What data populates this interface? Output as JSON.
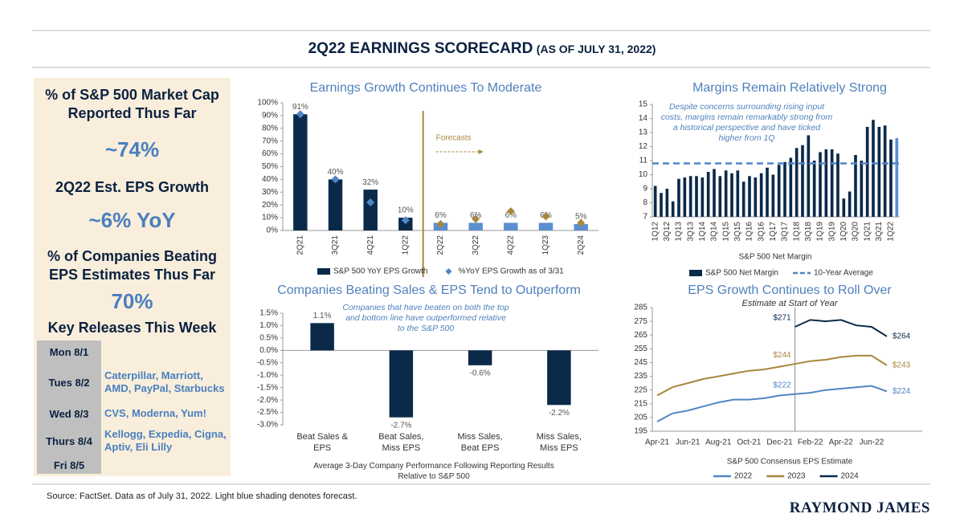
{
  "header": {
    "title": "2Q22 EARNINGS SCORECARD",
    "subtitle": "(AS OF JULY 31, 2022)"
  },
  "panel": {
    "stats": [
      {
        "label": "% of S&P 500 Market Cap Reported Thus Far",
        "value": "~74%"
      },
      {
        "label": "2Q22 Est. EPS Growth",
        "value": "~6% YoY"
      },
      {
        "label": "% of Companies Beating EPS Estimates Thus Far",
        "value": "70%"
      }
    ],
    "releases_title": "Key Releases This Week",
    "releases": [
      {
        "day": "Mon 8/1"
      },
      {
        "day": "Tues 8/2",
        "companies": "Caterpillar, Marriott, AMD, PayPal, Starbucks"
      },
      {
        "day": "Wed 8/3",
        "companies": "CVS, Moderna, Yum!"
      },
      {
        "day": "Thurs 8/4",
        "companies": "Kellogg, Expedia, Cigna, Aptiv, Eli Lilly"
      },
      {
        "day": "Fri 8/5"
      }
    ]
  },
  "chart_data": [
    {
      "type": "bar",
      "title": "Earnings Growth Continues To Moderate",
      "categories": [
        "2Q21",
        "3Q21",
        "4Q21",
        "1Q22",
        "2Q22",
        "3Q22",
        "4Q22",
        "1Q23",
        "2Q24"
      ],
      "series": [
        {
          "name": "S&P 500 YoY EPS Growth",
          "type": "bar",
          "colors": [
            "#0b2a4a",
            "#0b2a4a",
            "#0b2a4a",
            "#0b2a4a",
            "#5b8fcf",
            "#5b8fcf",
            "#5b8fcf",
            "#5b8fcf",
            "#5b8fcf"
          ],
          "values": [
            91,
            40,
            32,
            10,
            6,
            6,
            6,
            6,
            5
          ],
          "value_labels": [
            "91%",
            "40%",
            "32%",
            "10%",
            "6%",
            "6%",
            "6%",
            "6%",
            "5%"
          ]
        },
        {
          "name": "%YoY EPS Growth as of 3/31",
          "type": "scatter",
          "colors": [
            "#4f86c6",
            "#4f86c6",
            "#4f86c6",
            "#4f86c6",
            "#a8873c",
            "#a8873c",
            "#a8873c",
            "#a8873c",
            "#a8873c"
          ],
          "values": [
            91,
            40,
            22,
            8,
            5,
            9,
            15,
            11,
            6
          ]
        }
      ],
      "annotations": [
        "Forecasts"
      ],
      "ylim": [
        0,
        100
      ],
      "yticks": [
        {
          "value": 0,
          "label": "0%"
        },
        {
          "value": 10,
          "label": "10%"
        },
        {
          "value": 20,
          "label": "20%"
        },
        {
          "value": 30,
          "label": "30%"
        },
        {
          "value": 40,
          "label": "40%"
        },
        {
          "value": 50,
          "label": "50%"
        },
        {
          "value": 60,
          "label": "60%"
        },
        {
          "value": 70,
          "label": "70%"
        },
        {
          "value": 80,
          "label": "80%"
        },
        {
          "value": 90,
          "label": "90%"
        },
        {
          "value": 100,
          "label": "100%"
        }
      ],
      "grid": false
    },
    {
      "type": "bar",
      "title": "Margins Remain Relatively Strong",
      "categories": [
        "1Q12",
        null,
        "3Q12",
        null,
        "1Q13",
        null,
        "3Q13",
        null,
        "1Q14",
        null,
        "3Q14",
        null,
        "1Q15",
        null,
        "3Q15",
        null,
        "1Q16",
        null,
        "3Q16",
        null,
        "1Q17",
        null,
        "3Q17",
        null,
        "1Q18",
        null,
        "3Q18",
        null,
        "1Q19",
        null,
        "3Q19",
        null,
        "1Q20",
        null,
        "3Q20",
        null,
        "1Q21",
        null,
        "3Q21",
        null,
        "1Q22",
        null
      ],
      "series": [
        {
          "name": "S&P 500 Net Margin",
          "type": "bar",
          "colors": [
            "#0b2a4a",
            "#0b2a4a",
            "#0b2a4a",
            "#0b2a4a",
            "#0b2a4a",
            "#0b2a4a",
            "#0b2a4a",
            "#0b2a4a",
            "#0b2a4a",
            "#0b2a4a",
            "#0b2a4a",
            "#0b2a4a",
            "#0b2a4a",
            "#0b2a4a",
            "#0b2a4a",
            "#0b2a4a",
            "#0b2a4a",
            "#0b2a4a",
            "#0b2a4a",
            "#0b2a4a",
            "#0b2a4a",
            "#0b2a4a",
            "#0b2a4a",
            "#0b2a4a",
            "#0b2a4a",
            "#0b2a4a",
            "#0b2a4a",
            "#0b2a4a",
            "#0b2a4a",
            "#0b2a4a",
            "#0b2a4a",
            "#0b2a4a",
            "#0b2a4a",
            "#0b2a4a",
            "#0b2a4a",
            "#0b2a4a",
            "#0b2a4a",
            "#0b2a4a",
            "#0b2a4a",
            "#0b2a4a",
            "#0b2a4a",
            "#5b8fcf"
          ],
          "values": [
            9.2,
            8.7,
            9.0,
            8.1,
            9.7,
            9.8,
            9.9,
            9.9,
            9.8,
            10.2,
            10.4,
            9.9,
            10.3,
            10.1,
            10.3,
            9.5,
            9.9,
            9.8,
            10.1,
            10.5,
            10.0,
            10.7,
            10.9,
            11.2,
            11.9,
            12.1,
            12.8,
            11.0,
            11.6,
            11.8,
            11.8,
            11.5,
            8.3,
            8.8,
            11.4,
            11.0,
            13.4,
            13.9,
            13.4,
            13.5,
            12.5,
            12.6
          ]
        }
      ],
      "reference": {
        "name": "10-Year Average",
        "value": 10.8,
        "color": "#4f86c6",
        "dashed": true
      },
      "annotations": [
        "Despite concerns surrounding rising input costs, margins remain remarkably strong from a historical perspective and have ticked higher from 1Q"
      ],
      "x_label": "S&P 500 Net Margin",
      "ylim": [
        7,
        15
      ],
      "yticks": [
        7,
        8,
        9,
        10,
        11,
        12,
        13,
        14,
        15
      ],
      "grid": false
    },
    {
      "type": "bar",
      "title": "Companies Beating Sales & EPS Tend to Outperform",
      "categories": [
        "Beat Sales & EPS",
        "Beat Sales, Miss EPS",
        "Miss Sales, Beat EPS",
        "Miss Sales, Miss EPS"
      ],
      "series": [
        {
          "type": "bar",
          "colors": [
            "#0b2a4a",
            "#0b2a4a",
            "#0b2a4a",
            "#0b2a4a"
          ],
          "values": [
            1.1,
            -2.7,
            -0.6,
            -2.2
          ],
          "value_labels": [
            "1.1%",
            "-2.7%",
            "-0.6%",
            "-2.2%"
          ]
        }
      ],
      "annotations": [
        "Companies that have beaten on both the top and bottom line have outperformed relative to the S&P 500"
      ],
      "x_label": "Average 3-Day Company Performance Following Reporting Results Relative to S&P 500",
      "ylim": [
        -3,
        1.5
      ],
      "yticks": [
        {
          "value": -3,
          "label": "-3.0%"
        },
        {
          "value": -2.5,
          "label": "-2.5%"
        },
        {
          "value": -2,
          "label": "-2.0%"
        },
        {
          "value": -1.5,
          "label": "-1.5%"
        },
        {
          "value": -1,
          "label": "-1.0%"
        },
        {
          "value": -0.5,
          "label": "-0.5%"
        },
        {
          "value": 0,
          "label": "0.0%"
        },
        {
          "value": 0.5,
          "label": "0.5%"
        },
        {
          "value": 1,
          "label": "1.0%"
        },
        {
          "value": 1.5,
          "label": "1.5%"
        }
      ],
      "grid": false
    },
    {
      "type": "line",
      "title": "EPS Growth Continues to Roll Over",
      "subtitle": "Estimate at Start of Year",
      "categories": [
        "Apr-21",
        null,
        "Jun-21",
        null,
        "Aug-21",
        null,
        "Oct-21",
        null,
        "Dec-21",
        null,
        "Feb-22",
        null,
        "Apr-22",
        null,
        "Jun-22",
        null
      ],
      "series": [
        {
          "name": "2022",
          "color": "#4f86c6",
          "values": [
            202,
            208,
            210,
            213,
            216,
            218,
            218,
            219,
            221,
            222,
            223,
            225,
            226,
            227,
            228,
            224
          ],
          "value_labels": [
            null,
            null,
            null,
            null,
            null,
            null,
            null,
            null,
            null,
            "$222",
            null,
            null,
            null,
            null,
            null,
            "$224"
          ]
        },
        {
          "name": "2023",
          "color": "#a8873c",
          "values": [
            221,
            227,
            230,
            233,
            235,
            237,
            239,
            240,
            242,
            244,
            246,
            247,
            249,
            250,
            250,
            243
          ],
          "value_labels": [
            null,
            null,
            null,
            null,
            null,
            null,
            null,
            null,
            null,
            "$244",
            null,
            null,
            null,
            null,
            null,
            "$243"
          ]
        },
        {
          "name": "2024",
          "color": "#0b2a4a",
          "values": [
            null,
            null,
            null,
            null,
            null,
            null,
            null,
            null,
            null,
            271,
            276,
            275,
            276,
            272,
            271,
            264
          ],
          "value_labels": [
            null,
            null,
            null,
            null,
            null,
            null,
            null,
            null,
            null,
            "$271",
            null,
            null,
            null,
            null,
            null,
            "$264"
          ]
        }
      ],
      "x_label": "S&P 500 Consensus EPS Estimate",
      "ylim": [
        195,
        285
      ],
      "yticks": [
        195,
        205,
        215,
        225,
        235,
        245,
        255,
        265,
        275,
        285
      ],
      "grid": false
    }
  ],
  "footer": {
    "source": "Source: FactSet. Data as of July 31, 2022. Light blue shading denotes forecast.",
    "brand": "RAYMOND JAMES"
  }
}
